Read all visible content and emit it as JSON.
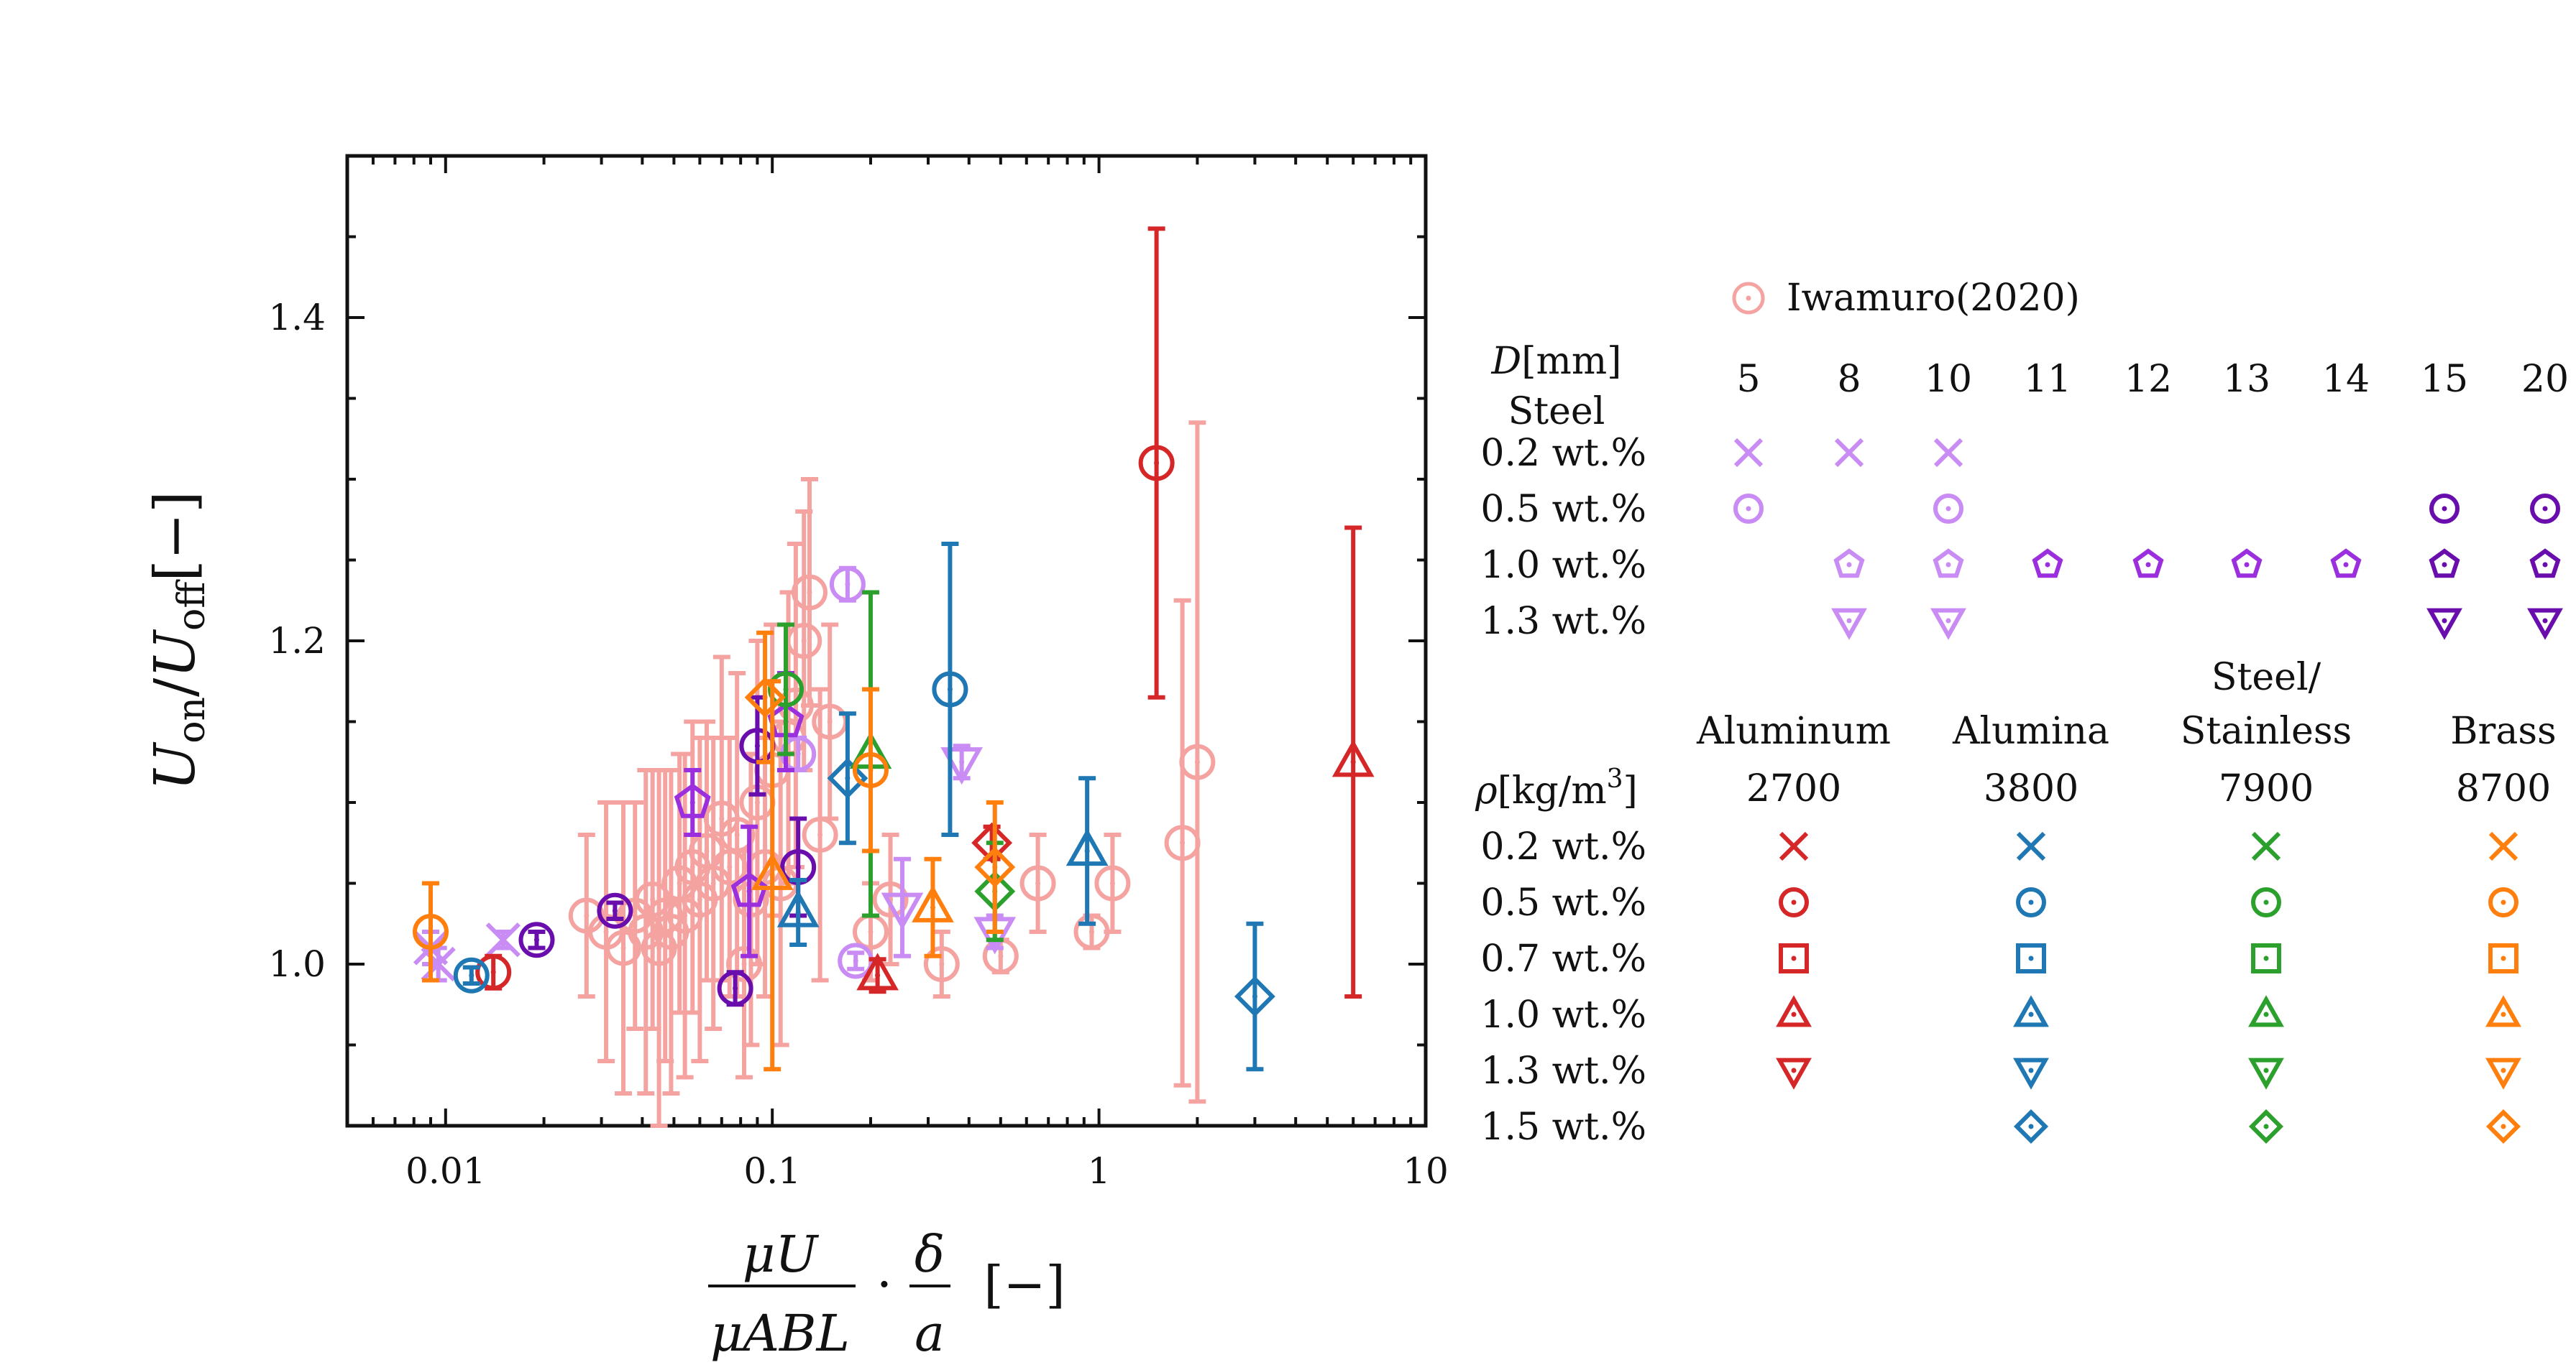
{
  "colors": {
    "iwamuro": "#f4a3a1",
    "steel02": "#c98bf4",
    "steel05": "#c98bf4",
    "steel10": "#9b2fde",
    "steel13": "#c98bf4",
    "aluminum": "#d62728",
    "alumina": "#1f77b4",
    "stainless": "#2ca02c",
    "brass": "#ff7f0e",
    "darkpurple": "#6a0dad"
  },
  "chart_data": {
    "type": "scatter",
    "xscale": "log",
    "xlim": [
      0.005,
      10
    ],
    "ylim": [
      0.9,
      1.5
    ],
    "xticks": [
      {
        "v": 0.01,
        "label": "0.01"
      },
      {
        "v": 0.1,
        "label": "0.1"
      },
      {
        "v": 1,
        "label": "1"
      },
      {
        "v": 10,
        "label": "10"
      }
    ],
    "yticks": [
      {
        "v": 1.0,
        "label": "1.0"
      },
      {
        "v": 1.2,
        "label": "1.2"
      },
      {
        "v": 1.4,
        "label": "1.4"
      }
    ],
    "xlabel": {
      "num": "μU",
      "den": "μABL",
      "mid": "·",
      "num2": "δ",
      "den2": "a",
      "unit": "[−]"
    },
    "ylabel": {
      "a": "U",
      "a_sub": "on",
      "b": "U",
      "b_sub": "off",
      "unit": "[−]"
    },
    "series": [
      {
        "name": "Iwamuro(2020)",
        "marker": "circle-dot",
        "color": "iwamuro",
        "points": [
          [
            0.027,
            1.03,
            0.05
          ],
          [
            0.031,
            1.02,
            0.08
          ],
          [
            0.035,
            1.01,
            0.09
          ],
          [
            0.038,
            1.03,
            0.07
          ],
          [
            0.041,
            1.02,
            0.1
          ],
          [
            0.043,
            1.04,
            0.08
          ],
          [
            0.045,
            1.01,
            0.11
          ],
          [
            0.047,
            1.03,
            0.09
          ],
          [
            0.049,
            1.02,
            0.1
          ],
          [
            0.052,
            1.05,
            0.08
          ],
          [
            0.054,
            1.03,
            0.1
          ],
          [
            0.057,
            1.06,
            0.09
          ],
          [
            0.06,
            1.04,
            0.1
          ],
          [
            0.063,
            1.07,
            0.08
          ],
          [
            0.066,
            1.05,
            0.09
          ],
          [
            0.07,
            1.09,
            0.1
          ],
          [
            0.074,
            1.06,
            0.08
          ],
          [
            0.078,
            1.08,
            0.1
          ],
          [
            0.082,
            1.0,
            0.07
          ],
          [
            0.086,
            1.04,
            0.09
          ],
          [
            0.09,
            1.1,
            0.1
          ],
          [
            0.095,
            1.06,
            0.08
          ],
          [
            0.1,
            1.12,
            0.09
          ],
          [
            0.106,
            1.05,
            0.1
          ],
          [
            0.112,
            1.14,
            0.09
          ],
          [
            0.118,
            1.16,
            0.1
          ],
          [
            0.125,
            1.2,
            0.08
          ],
          [
            0.13,
            1.23,
            0.07
          ],
          [
            0.14,
            1.08,
            0.09
          ],
          [
            0.15,
            1.15,
            0.06
          ],
          [
            0.2,
            1.02,
            0.03
          ],
          [
            0.23,
            1.04,
            0.04
          ],
          [
            0.33,
            1.0,
            0.02
          ],
          [
            0.5,
            1.005,
            0.01
          ],
          [
            0.65,
            1.05,
            0.03
          ],
          [
            0.95,
            1.02,
            0.01
          ],
          [
            1.1,
            1.05,
            0.03
          ],
          [
            1.8,
            1.075,
            0.15
          ],
          [
            2.0,
            1.125,
            0.21
          ]
        ]
      },
      {
        "name": "Steel 0.2 wt.%",
        "marker": "x",
        "color": "steel02",
        "points": [
          [
            0.009,
            1.01,
            0.01
          ],
          [
            0.0095,
            1.0,
            0.01
          ],
          [
            0.015,
            1.015,
            0.005
          ]
        ]
      },
      {
        "name": "Steel 0.5 wt.%",
        "marker": "circle-dot",
        "color": "steel05",
        "points": [
          [
            0.18,
            1.002,
            0.005
          ],
          [
            0.12,
            1.13,
            0.01
          ],
          [
            0.17,
            1.235,
            0.01
          ]
        ]
      },
      {
        "name": "Steel 1.0 wt.%",
        "marker": "pentagon",
        "color": "steel10",
        "points": [
          [
            0.057,
            1.1,
            0.02
          ],
          [
            0.085,
            1.045,
            0.04
          ],
          [
            0.11,
            1.15,
            0.03
          ]
        ]
      },
      {
        "name": "Steel 1.3 wt.%",
        "marker": "tri-down",
        "color": "steel13",
        "points": [
          [
            0.25,
            1.035,
            0.03
          ],
          [
            0.38,
            1.125,
            0.01
          ],
          [
            0.48,
            1.02,
            0.01
          ]
        ]
      },
      {
        "name": "Steel D15/20",
        "marker": "circle-dot",
        "color": "darkpurple",
        "points": [
          [
            0.019,
            1.015,
            0.005
          ],
          [
            0.033,
            1.033,
            0.005
          ],
          [
            0.09,
            1.135,
            0.03
          ],
          [
            0.077,
            0.985,
            0.01
          ],
          [
            0.12,
            1.06,
            0.03
          ]
        ]
      },
      {
        "name": "Aluminum",
        "marker": "mixed",
        "color": "aluminum",
        "points": [
          [
            0.014,
            0.995,
            0.01
          ],
          [
            0.21,
            0.993,
            0.01
          ],
          [
            0.47,
            1.075,
            0.01
          ],
          [
            1.5,
            1.31,
            0.145
          ],
          [
            6.0,
            1.125,
            0.145
          ]
        ]
      },
      {
        "name": "Alumina",
        "marker": "mixed",
        "color": "alumina",
        "points": [
          [
            0.012,
            0.993,
            0.005
          ],
          [
            0.12,
            1.032,
            0.02
          ],
          [
            0.17,
            1.115,
            0.04
          ],
          [
            0.35,
            1.17,
            0.09
          ],
          [
            0.92,
            1.07,
            0.045
          ],
          [
            3.0,
            0.98,
            0.045
          ]
        ]
      },
      {
        "name": "Stainless",
        "marker": "mixed",
        "color": "stainless",
        "points": [
          [
            0.11,
            1.17,
            0.04
          ],
          [
            0.2,
            1.13,
            0.1
          ],
          [
            0.48,
            1.045,
            0.03
          ]
        ]
      },
      {
        "name": "Brass",
        "marker": "mixed",
        "color": "brass",
        "points": [
          [
            0.009,
            1.02,
            0.03
          ],
          [
            0.1,
            1.055,
            0.12
          ],
          [
            0.095,
            1.165,
            0.04
          ],
          [
            0.2,
            1.12,
            0.05
          ],
          [
            0.31,
            1.035,
            0.03
          ],
          [
            0.48,
            1.06,
            0.04
          ]
        ]
      }
    ]
  },
  "legend": {
    "iwamuro_label": "Iwamuro(2020)",
    "steel_header_a": "D[mm]",
    "steel_header_b": "Steel",
    "diameters": [
      "5",
      "8",
      "10",
      "11",
      "12",
      "13",
      "14",
      "15",
      "20"
    ],
    "steel_rows": [
      "0.2 wt.%",
      "0.5 wt.%",
      "1.0 wt.%",
      "1.3 wt.%"
    ],
    "materials": [
      "Aluminum",
      "Alumina",
      "Steel/",
      "Brass"
    ],
    "materials_line2": "Stainless",
    "rho_label": "ρ[kg/m3]",
    "densities": [
      "2700",
      "3800",
      "7900",
      "8700"
    ],
    "mat_rows": [
      "0.2 wt.%",
      "0.5 wt.%",
      "0.7 wt.%",
      "1.0 wt.%",
      "1.3 wt.%",
      "1.5 wt.%"
    ]
  }
}
